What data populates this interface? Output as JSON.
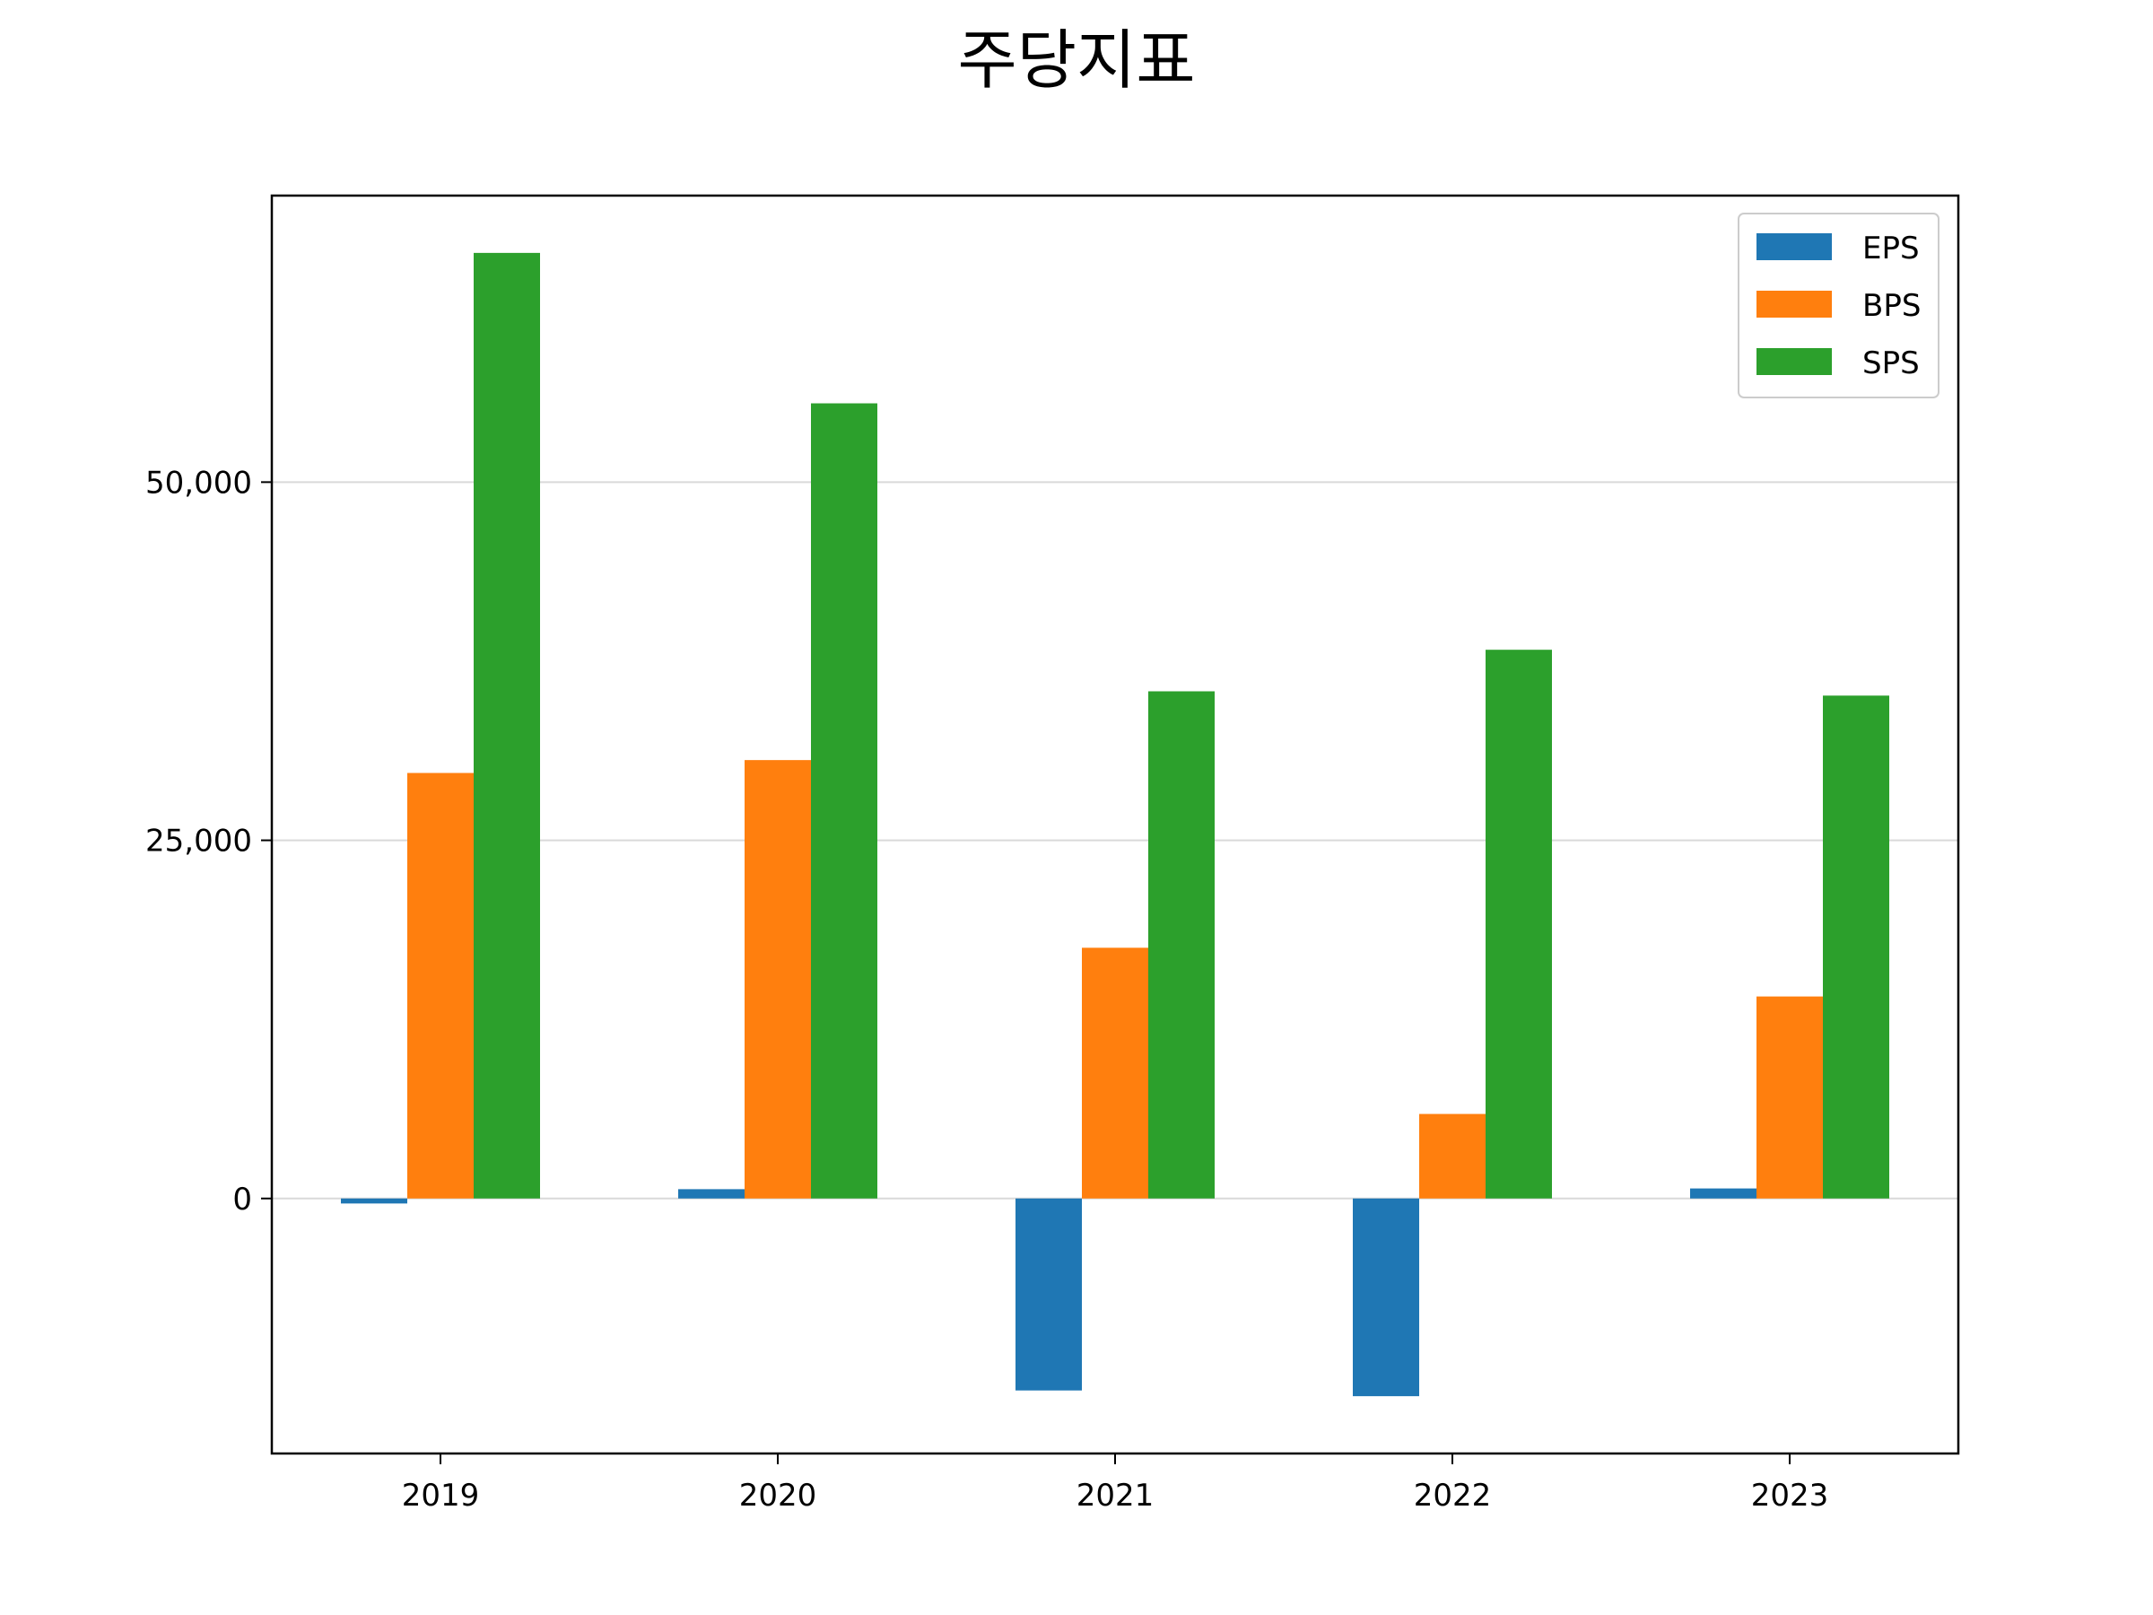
{
  "chart_data": {
    "type": "bar",
    "title": "주당지표",
    "xlabel": "",
    "ylabel": "",
    "categories": [
      "2019",
      "2020",
      "2021",
      "2022",
      "2023"
    ],
    "series": [
      {
        "name": "EPS",
        "color": "#1f77b4",
        "values": [
          -350,
          650,
          -13400,
          -13800,
          700
        ]
      },
      {
        "name": "BPS",
        "color": "#ff7f0e",
        "values": [
          29700,
          30600,
          17500,
          5900,
          14100
        ]
      },
      {
        "name": "SPS",
        "color": "#2ca02c",
        "values": [
          66000,
          55500,
          35400,
          38300,
          35100
        ]
      }
    ],
    "ylim": [
      -17800,
      70000
    ],
    "yticks": [
      0,
      25000,
      50000
    ],
    "ytick_labels": [
      "0",
      "25,000",
      "50,000"
    ],
    "grid": {
      "y": true,
      "x": false,
      "color": "#d9d9d9"
    },
    "legend": {
      "position": "top-right"
    }
  }
}
